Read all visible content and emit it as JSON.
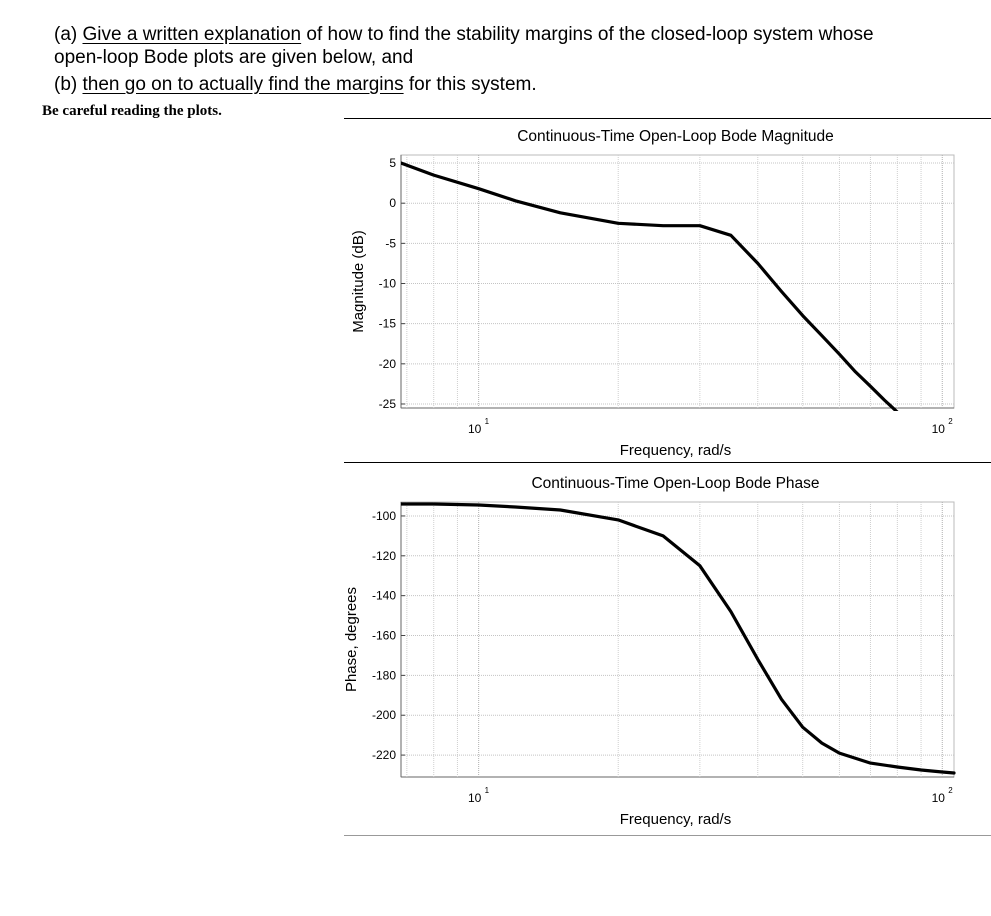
{
  "question": {
    "part_a_prefix": "(a) ",
    "part_a_link": "Give a written explanation",
    "part_a_rest": " of how to find the stability margins of the closed-loop system whose",
    "part_a_line2": "open-loop Bode plots are given below, and",
    "part_b_prefix": "(b) ",
    "part_b_link": "then go on to actually find the margins",
    "part_b_rest": " for this system.",
    "note": "Be careful reading the plots."
  },
  "chart_data": [
    {
      "type": "line",
      "title": "Continuous-Time Open-Loop Bode Magnitude",
      "xlabel": "Frequency, rad/s",
      "ylabel": "Magnitude (dB)",
      "xscale": "log",
      "xlim": [
        6.8,
        106
      ],
      "ylim": [
        -25.5,
        6
      ],
      "xticks": [
        {
          "base": "10",
          "exp": "1",
          "value": 10
        },
        {
          "base": "10",
          "exp": "2",
          "value": 100
        }
      ],
      "yticks": [
        5,
        0,
        -5,
        -10,
        -15,
        -20,
        -25
      ],
      "grid": true,
      "series": [
        {
          "x": [
            6.8,
            8,
            10,
            12,
            15,
            20,
            25,
            30,
            35,
            40,
            45,
            50,
            55,
            60,
            65,
            70,
            75,
            80
          ],
          "y": [
            5,
            3.5,
            1.8,
            0.3,
            -1.2,
            -2.5,
            -2.8,
            -2.8,
            -4,
            -7.5,
            -11,
            -14,
            -16.5,
            -18.8,
            -21,
            -22.8,
            -24.5,
            -26
          ]
        }
      ]
    },
    {
      "type": "line",
      "title": "Continuous-Time Open-Loop Bode Phase",
      "xlabel": "Frequency, rad/s",
      "ylabel": "Phase, degrees",
      "xscale": "log",
      "xlim": [
        6.8,
        106
      ],
      "ylim": [
        -231,
        -93
      ],
      "xticks": [
        {
          "base": "10",
          "exp": "1",
          "value": 10
        },
        {
          "base": "10",
          "exp": "2",
          "value": 100
        }
      ],
      "yticks": [
        -100,
        -120,
        -140,
        -160,
        -180,
        -200,
        -220
      ],
      "grid": true,
      "series": [
        {
          "x": [
            6.8,
            8,
            10,
            12,
            15,
            20,
            25,
            30,
            35,
            40,
            45,
            50,
            55,
            60,
            70,
            80,
            90,
            100,
            106
          ],
          "y": [
            -94,
            -94,
            -94.5,
            -95.5,
            -97,
            -102,
            -110,
            -125,
            -148,
            -172,
            -192,
            -206,
            -214,
            -219,
            -224,
            -226,
            -227.5,
            -228.5,
            -229
          ]
        }
      ]
    }
  ]
}
